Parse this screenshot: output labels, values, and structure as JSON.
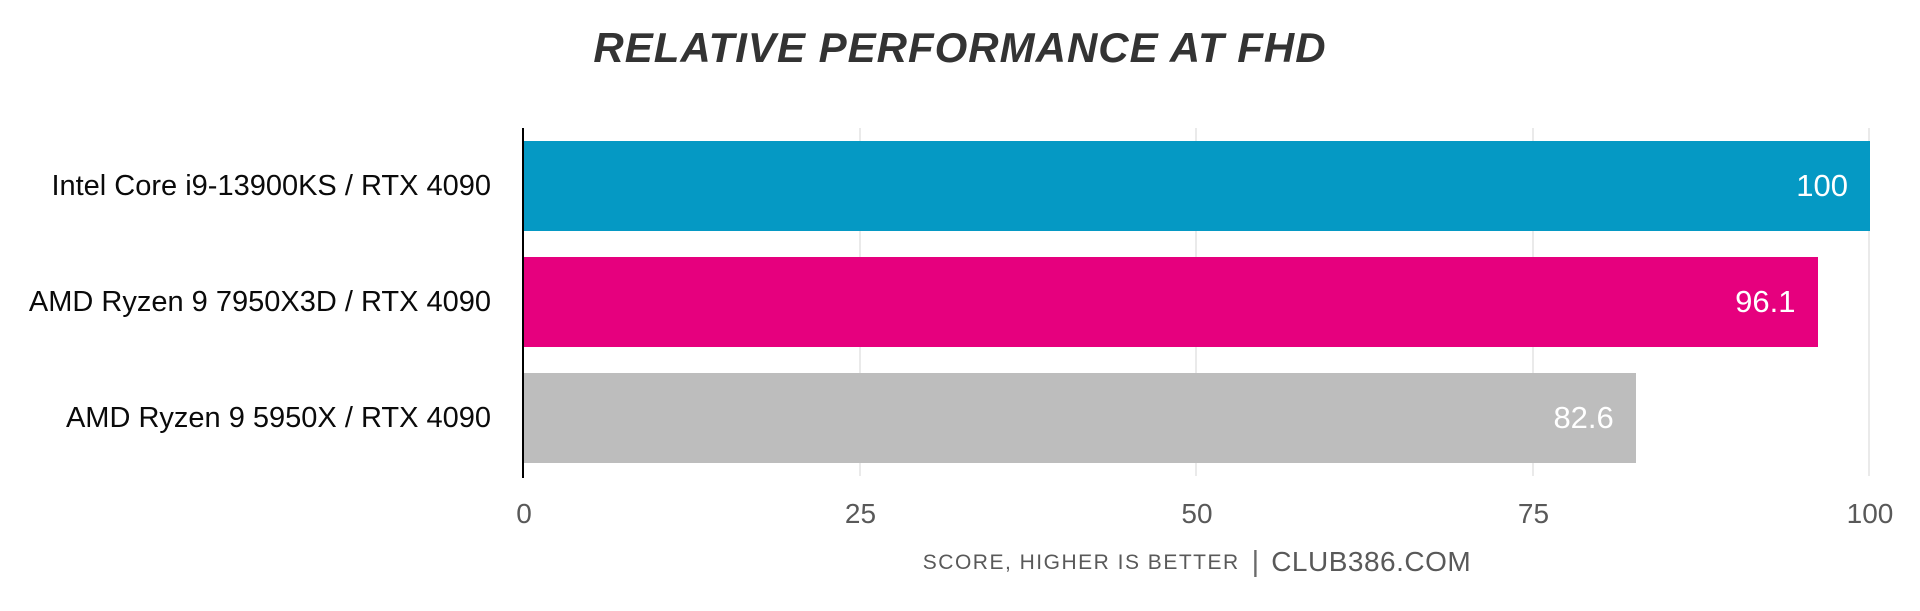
{
  "chart_data": {
    "type": "bar",
    "orientation": "horizontal",
    "title": "RELATIVE PERFORMANCE AT FHD",
    "categories": [
      "Intel Core i9-13900KS / RTX 4090",
      "AMD Ryzen 9 7950X3D / RTX 4090",
      "AMD Ryzen 9 5950X / RTX 4090"
    ],
    "values": [
      100,
      96.1,
      82.6
    ],
    "value_labels": [
      "100",
      "96.1",
      "82.6"
    ],
    "bar_colors": [
      "#0599c4",
      "#e6007e",
      "#bdbdbd"
    ],
    "xlim": [
      0,
      100
    ],
    "x_ticks": [
      0,
      25,
      50,
      75,
      100
    ],
    "grid": true,
    "legend": "none",
    "footer": {
      "note": "SCORE, HIGHER IS BETTER",
      "separator": "|",
      "source": "CLUB386.COM"
    }
  },
  "colors": {
    "background": "#ffffff",
    "title_text": "#333333",
    "category_text": "#0a0a0a",
    "tick_text": "#595959",
    "footer_text": "#595959",
    "value_text": "#ffffff",
    "axis_line": "#000000",
    "gridline": "#eaeaea"
  }
}
